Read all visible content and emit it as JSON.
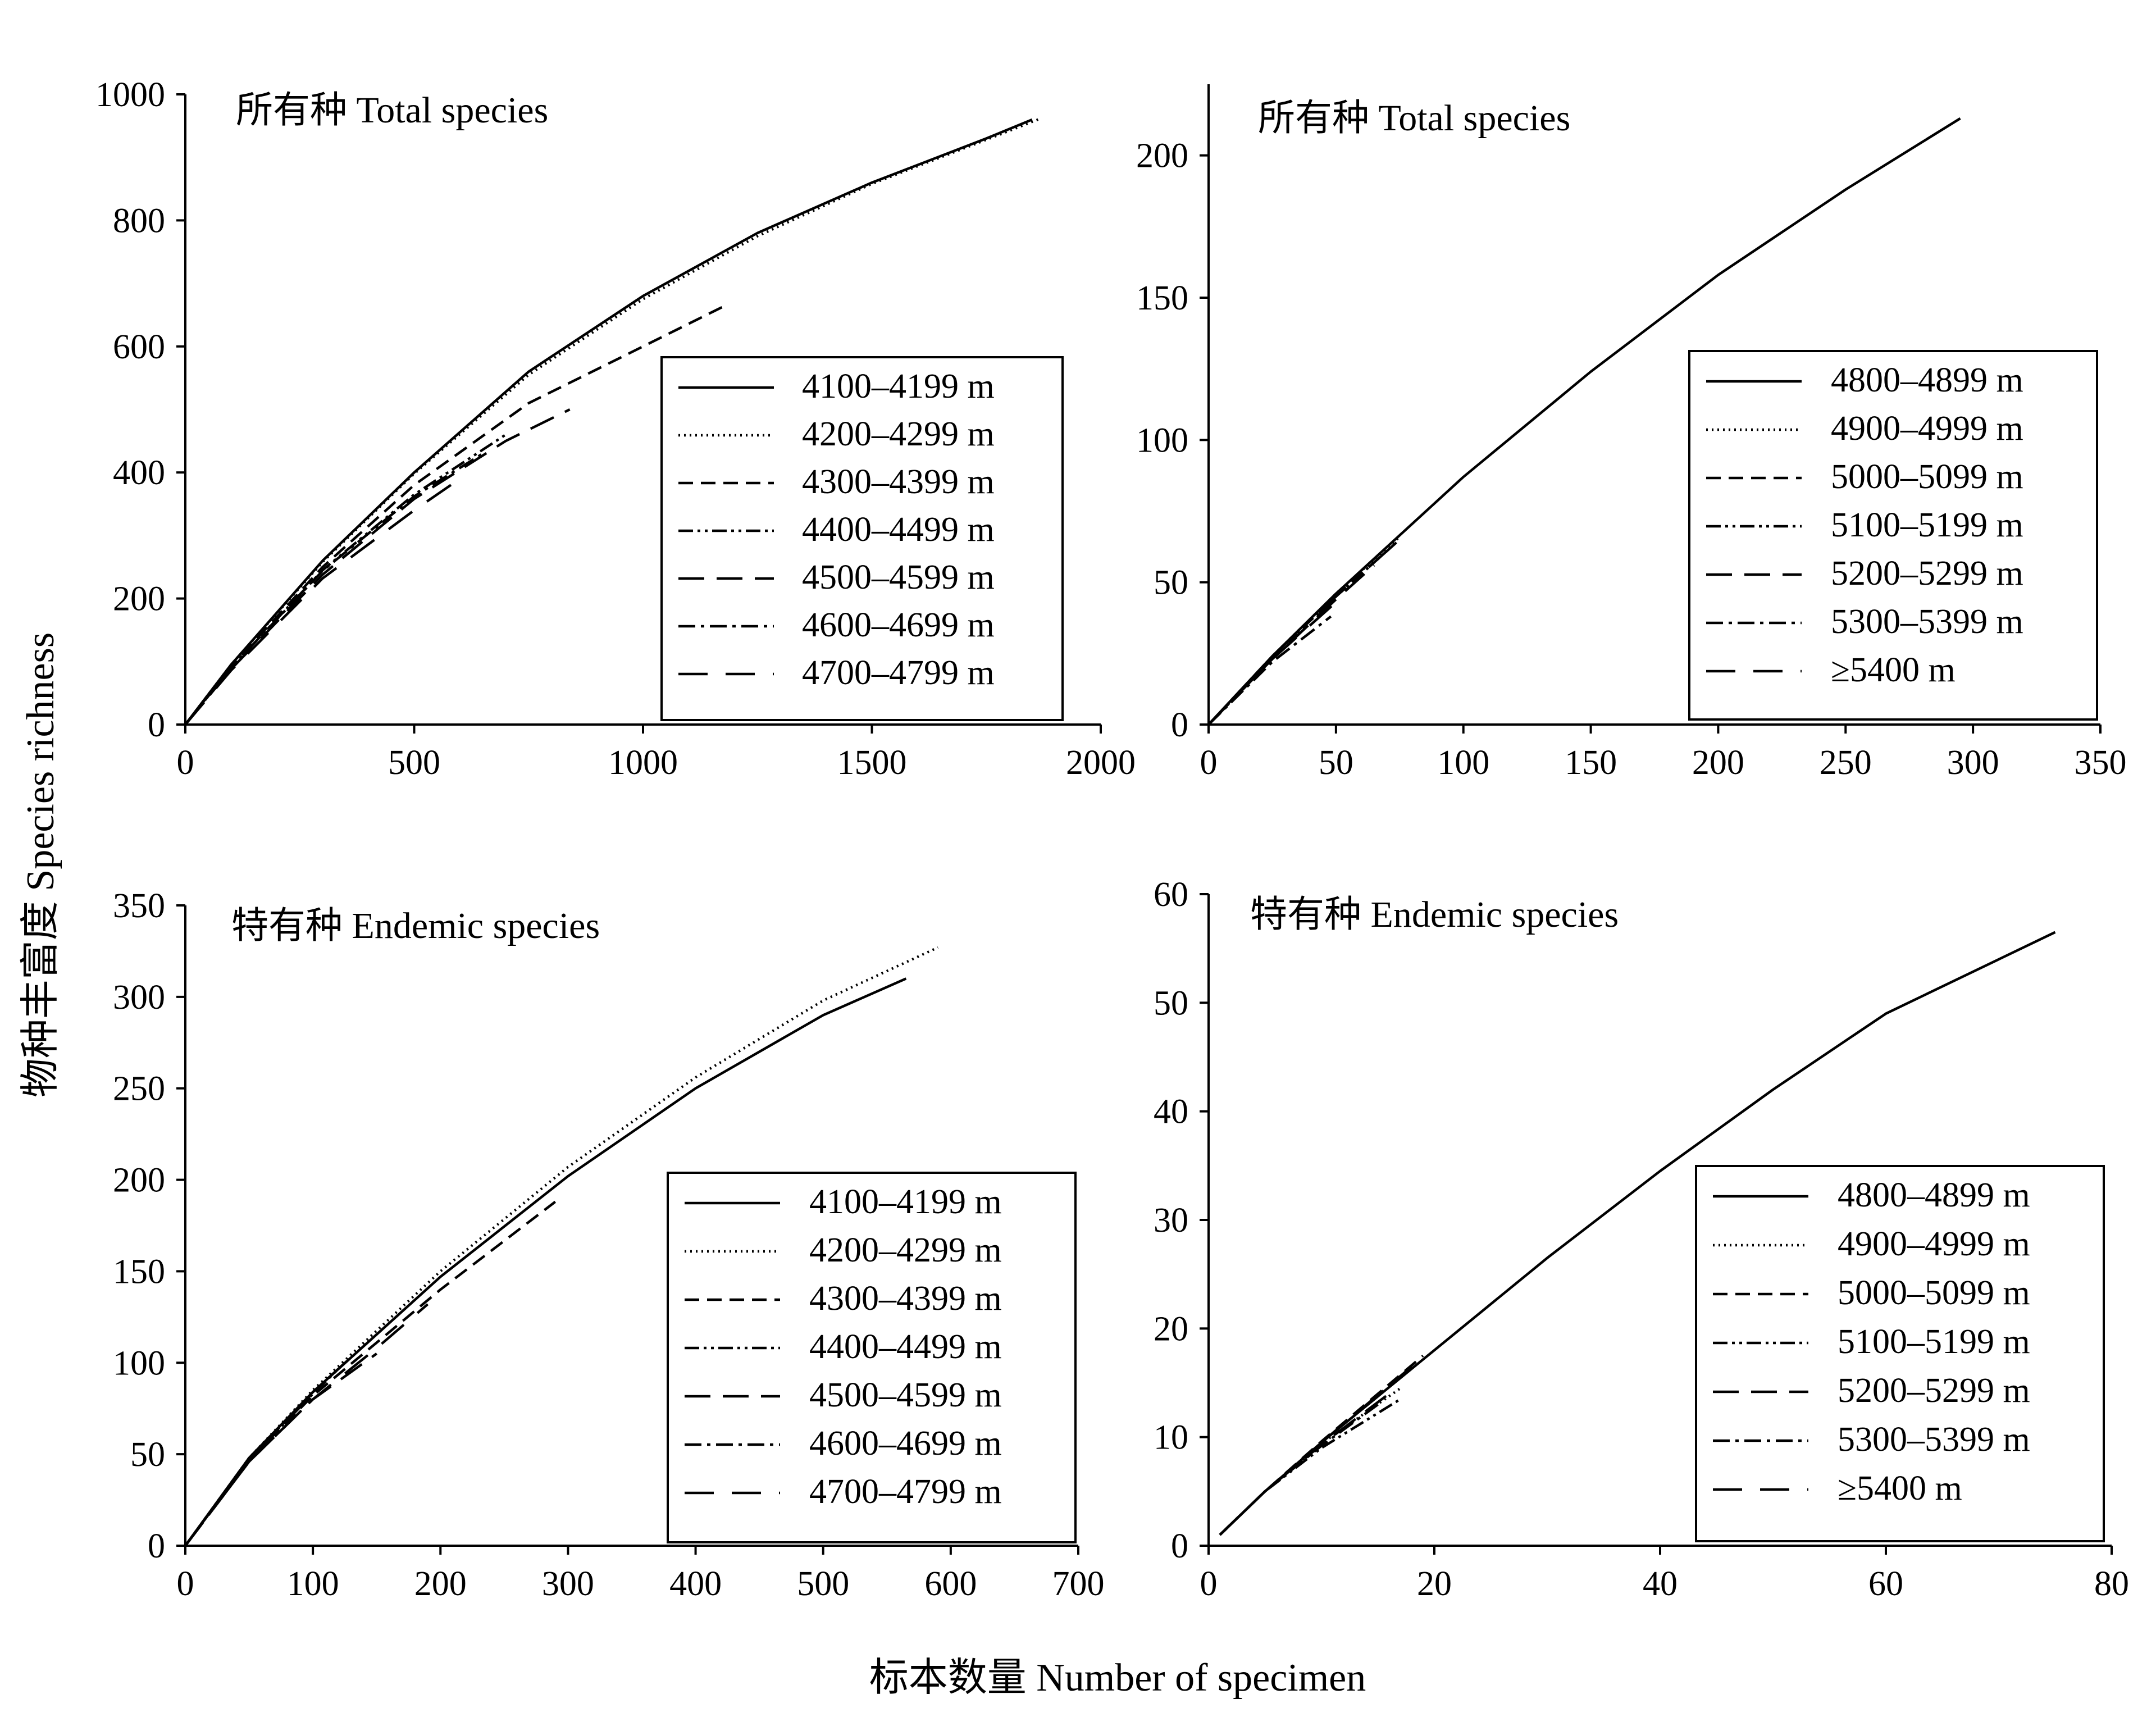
{
  "figure": {
    "ylabel": "物种丰富度 Species richness",
    "xlabel": "标本数量 Number of specimen"
  },
  "chart_data": [
    {
      "type": "line",
      "title": "所有种 Total species",
      "xlim": [
        0,
        2000
      ],
      "ylim": [
        0,
        1000
      ],
      "xticks": [
        0,
        500,
        1000,
        1500,
        2000
      ],
      "yticks": [
        0,
        200,
        400,
        600,
        800,
        1000
      ],
      "legend_position": "lower-right",
      "series": [
        {
          "name": "4100–4199 m",
          "dash": "solid",
          "x": [
            0,
            100,
            300,
            500,
            750,
            1000,
            1250,
            1500,
            1750,
            1850
          ],
          "y": [
            0,
            95,
            260,
            400,
            560,
            680,
            780,
            860,
            930,
            960
          ]
        },
        {
          "name": "4200–4299 m",
          "dash": "dotted",
          "x": [
            0,
            100,
            300,
            500,
            750,
            1000,
            1250,
            1500,
            1750,
            1870
          ],
          "y": [
            0,
            95,
            258,
            398,
            555,
            675,
            775,
            858,
            928,
            962
          ]
        },
        {
          "name": "4300–4399 m",
          "dash": "dashed",
          "x": [
            0,
            100,
            300,
            500,
            750,
            1000,
            1180
          ],
          "y": [
            0,
            92,
            250,
            380,
            510,
            600,
            665
          ]
        },
        {
          "name": "4400–4499 m",
          "dash": "dashdotdot",
          "x": [
            0,
            100,
            300,
            500,
            700
          ],
          "y": [
            0,
            90,
            245,
            365,
            460
          ]
        },
        {
          "name": "4500–4599 m",
          "dash": "longdash",
          "x": [
            0,
            100,
            300,
            500,
            700,
            840
          ],
          "y": [
            0,
            88,
            238,
            358,
            450,
            500
          ]
        },
        {
          "name": "4600–4699 m",
          "dash": "dashdot",
          "x": [
            0,
            100,
            300,
            500,
            650
          ],
          "y": [
            0,
            90,
            244,
            362,
            430
          ]
        },
        {
          "name": "4700–4799 m",
          "dash": "longdash2",
          "x": [
            0,
            100,
            300,
            500,
            600
          ],
          "y": [
            0,
            86,
            232,
            340,
            390
          ]
        }
      ]
    },
    {
      "type": "line",
      "title": "所有种 Total species",
      "xlim": [
        0,
        350
      ],
      "ylim": [
        0,
        225
      ],
      "xticks": [
        0,
        50,
        100,
        150,
        200,
        250,
        300,
        350
      ],
      "yticks": [
        0,
        50,
        100,
        150,
        200
      ],
      "legend_position": "lower-right",
      "series": [
        {
          "name": "4800–4899 m",
          "dash": "solid",
          "x": [
            0,
            25,
            50,
            100,
            150,
            200,
            250,
            295
          ],
          "y": [
            0,
            24,
            46,
            87,
            124,
            158,
            188,
            213
          ]
        },
        {
          "name": "4900–4999 m",
          "dash": "dotted",
          "x": [
            0,
            25,
            50,
            75
          ],
          "y": [
            0,
            24,
            46,
            66
          ]
        },
        {
          "name": "5000–5099 m",
          "dash": "dashed",
          "x": [
            0,
            25,
            50,
            75
          ],
          "y": [
            0,
            24,
            45,
            65
          ]
        },
        {
          "name": "5100–5199 m",
          "dash": "dashdotdot",
          "x": [
            0,
            25,
            50,
            70
          ],
          "y": [
            0,
            24,
            45,
            61
          ]
        },
        {
          "name": "5200–5299 m",
          "dash": "longdash",
          "x": [
            0,
            25,
            50,
            65
          ],
          "y": [
            0,
            23,
            44,
            56
          ]
        },
        {
          "name": "5300–5399 m",
          "dash": "dashdot",
          "x": [
            0,
            25,
            48
          ],
          "y": [
            0,
            22,
            38
          ]
        },
        {
          "name": "≥5400 m",
          "dash": "longdash2",
          "x": [
            0,
            25,
            50
          ],
          "y": [
            0,
            23,
            43
          ]
        }
      ]
    },
    {
      "type": "line",
      "title": "特有种 Endemic species",
      "xlim": [
        0,
        700
      ],
      "ylim": [
        0,
        350
      ],
      "xticks": [
        0,
        100,
        200,
        300,
        400,
        500,
        600,
        700
      ],
      "yticks": [
        0,
        50,
        100,
        150,
        200,
        250,
        300,
        350
      ],
      "legend_position": "lower-right",
      "series": [
        {
          "name": "4100–4199 m",
          "dash": "solid",
          "x": [
            0,
            50,
            100,
            200,
            300,
            400,
            500,
            565
          ],
          "y": [
            0,
            48,
            84,
            147,
            202,
            250,
            290,
            310
          ]
        },
        {
          "name": "4200–4299 m",
          "dash": "dotted",
          "x": [
            0,
            50,
            100,
            200,
            300,
            400,
            500,
            590
          ],
          "y": [
            0,
            48,
            85,
            150,
            207,
            256,
            298,
            327
          ]
        },
        {
          "name": "4300–4399 m",
          "dash": "dashed",
          "x": [
            0,
            50,
            100,
            200,
            290
          ],
          "y": [
            0,
            47,
            82,
            140,
            188
          ]
        },
        {
          "name": "4400–4499 m",
          "dash": "dashdotdot",
          "x": [
            0,
            50,
            100,
            125
          ],
          "y": [
            0,
            47,
            83,
            100
          ]
        },
        {
          "name": "4500–4599 m",
          "dash": "longdash",
          "x": [
            0,
            50,
            100,
            150
          ],
          "y": [
            0,
            46,
            80,
            105
          ]
        },
        {
          "name": "4600–4699 m",
          "dash": "dashdot",
          "x": [
            0,
            50,
            100,
            130
          ],
          "y": [
            0,
            47,
            84,
            103
          ]
        },
        {
          "name": "4700–4799 m",
          "dash": "longdash2",
          "x": [
            0,
            50,
            100,
            150,
            190
          ],
          "y": [
            0,
            46,
            80,
            108,
            132
          ]
        }
      ]
    },
    {
      "type": "line",
      "title": "特有种 Endemic species",
      "xlim": [
        0,
        80
      ],
      "ylim": [
        0,
        60
      ],
      "xticks": [
        0,
        20,
        40,
        60,
        80
      ],
      "yticks": [
        0,
        10,
        20,
        30,
        40,
        50,
        60
      ],
      "legend_position": "lower-right",
      "series": [
        {
          "name": "4800–4899 m",
          "dash": "solid",
          "x": [
            1,
            5,
            10,
            20,
            30,
            40,
            50,
            60,
            70,
            75
          ],
          "y": [
            1,
            5,
            9.5,
            18,
            26.5,
            34.5,
            42,
            49,
            54,
            56.5
          ]
        },
        {
          "name": "4900–4999 m",
          "dash": "dotted",
          "x": [
            1,
            5,
            10,
            17
          ],
          "y": [
            1,
            5,
            9.4,
            14.5
          ]
        },
        {
          "name": "5000–5099 m",
          "dash": "dashed",
          "x": [
            1,
            5,
            10,
            19
          ],
          "y": [
            1,
            5,
            9.6,
            17.5
          ]
        },
        {
          "name": "5100–5199 m",
          "dash": "dashdotdot",
          "x": [
            1,
            5,
            10,
            17
          ],
          "y": [
            1,
            5,
            9.0,
            13.5
          ]
        },
        {
          "name": "5200–5299 m",
          "dash": "longdash",
          "x": [
            1,
            5,
            10,
            16
          ],
          "y": [
            1,
            5,
            9.3,
            14
          ]
        },
        {
          "name": "5300–5399 m",
          "dash": "dashdot",
          "x": [
            1,
            5,
            10,
            15
          ],
          "y": [
            1,
            5,
            9.2,
            13
          ]
        },
        {
          "name": "≥5400 m",
          "dash": "longdash2",
          "x": [
            1,
            5,
            10,
            18
          ],
          "y": [
            1,
            5,
            9.5,
            16.5
          ]
        }
      ]
    }
  ]
}
